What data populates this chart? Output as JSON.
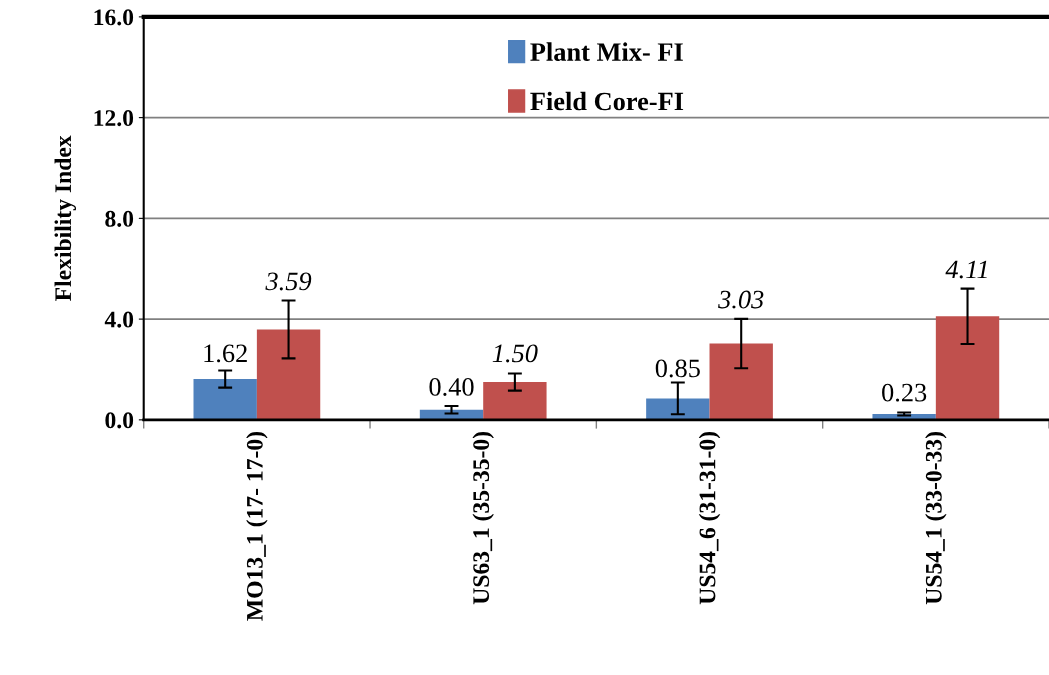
{
  "chart_data": {
    "type": "bar",
    "ylabel": "Flexibility Index",
    "categories": [
      "MO13_1 (17- 17-0)",
      "US63_1 (35-35-0)",
      "US54_6 (31-31-0)",
      "US54_1 (33-0-33)"
    ],
    "series": [
      {
        "name": "Plant Mix- FI",
        "color": "#4f81bd",
        "values": [
          1.62,
          0.4,
          0.85,
          0.23
        ],
        "value_labels": [
          "1.62",
          "0.40",
          "0.85",
          "0.23"
        ],
        "errors": [
          0.34,
          0.15,
          0.63,
          0.06
        ]
      },
      {
        "name": "Field Core-FI",
        "color": "#c0504d",
        "values": [
          3.59,
          1.5,
          3.03,
          4.11
        ],
        "value_labels": [
          "3.59",
          "1.50",
          "3.03",
          "4.11"
        ],
        "errors": [
          1.15,
          0.34,
          0.98,
          1.1
        ]
      }
    ],
    "ylim": [
      0,
      16
    ],
    "yticks": [
      {
        "value": 0,
        "label": "0.0"
      },
      {
        "value": 4,
        "label": "4.0"
      },
      {
        "value": 8,
        "label": "8.0"
      },
      {
        "value": 12,
        "label": "12.0"
      },
      {
        "value": 16,
        "label": "16.0"
      }
    ],
    "grid": "y",
    "legend": "top"
  }
}
